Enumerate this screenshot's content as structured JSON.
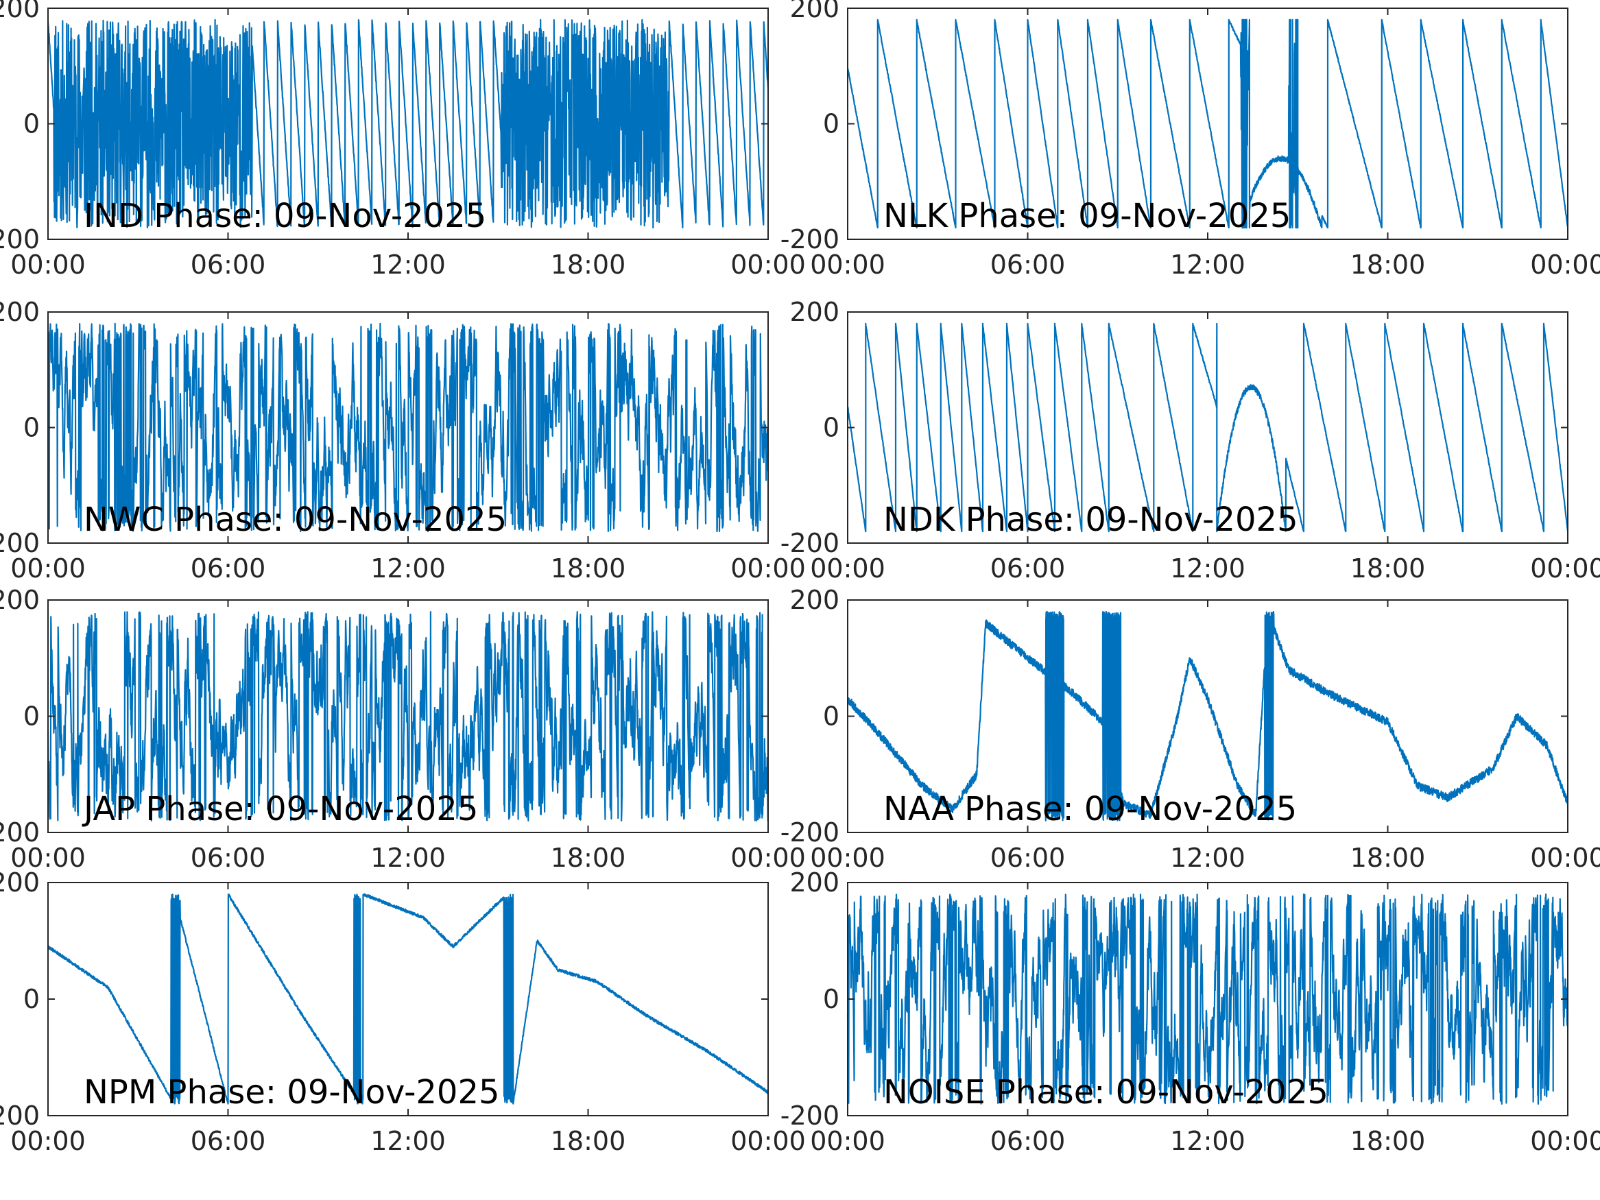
{
  "figure": {
    "line_color": "#0072BD",
    "axis_color": "#262626",
    "background": "#ffffff"
  },
  "chart_data": [
    {
      "type": "line",
      "panel_label": "IND Phase: 09-Nov-2025",
      "xlim": [
        "00:00",
        "24:00"
      ],
      "xticks": [
        "00:00",
        "06:00",
        "12:00",
        "18:00",
        "00:00"
      ],
      "ylim": [
        -200,
        200
      ],
      "yticks": [
        "-200",
        "0",
        "200"
      ],
      "pattern": "dense-wrap",
      "series": [
        {
          "values_description": "phase in degrees wrapping between -180 and 180"
        }
      ],
      "dense_spans": [
        [
          0.2,
          6.8
        ],
        [
          15.1,
          20.7
        ]
      ],
      "ramp_period_hours": 0.45,
      "seed": 11
    },
    {
      "type": "line",
      "panel_label": "NLK Phase: 09-Nov-2025",
      "xlim": [
        "00:00",
        "24:00"
      ],
      "xticks": [
        "00:00",
        "06:00",
        "12:00",
        "18:00",
        "00:00"
      ],
      "ylim": [
        -200,
        200
      ],
      "yticks": [
        "-200",
        "0",
        "200"
      ],
      "pattern": "sawtooth",
      "wrap_times": [
        1.0,
        2.3,
        3.6,
        4.9,
        6.0,
        7.0,
        8.0,
        9.0,
        10.1,
        11.4,
        12.7,
        16.0,
        17.8,
        19.1,
        20.5,
        21.8,
        23.1
      ],
      "anomaly": {
        "start": 13.1,
        "end": 15.8,
        "min": -180,
        "max": -60
      },
      "dense_spans": [
        [
          13.1,
          13.4
        ],
        [
          14.7,
          15.0
        ]
      ],
      "seed": 23
    },
    {
      "type": "line",
      "panel_label": "NWC Phase: 09-Nov-2025",
      "xlim": [
        "00:00",
        "24:00"
      ],
      "xticks": [
        "00:00",
        "06:00",
        "12:00",
        "18:00",
        "00:00"
      ],
      "ylim": [
        -200,
        200
      ],
      "yticks": [
        "-200",
        "0",
        "200"
      ],
      "pattern": "random-wrap",
      "seed": 37
    },
    {
      "type": "line",
      "panel_label": "NDK Phase: 09-Nov-2025",
      "xlim": [
        "00:00",
        "24:00"
      ],
      "xticks": [
        "00:00",
        "06:00",
        "12:00",
        "18:00",
        "00:00"
      ],
      "ylim": [
        -200,
        200
      ],
      "yticks": [
        "-200",
        "0",
        "200"
      ],
      "pattern": "sawtooth",
      "wrap_times": [
        0.6,
        1.6,
        2.3,
        3.1,
        3.8,
        4.5,
        5.3,
        6.0,
        6.9,
        7.8,
        8.7,
        10.2,
        11.5,
        13.5,
        15.2,
        16.6,
        17.9,
        19.2,
        20.5,
        21.8,
        23.2
      ],
      "anomaly": {
        "start": 12.3,
        "end": 14.6,
        "min": -180,
        "max": 70
      },
      "seed": 41
    },
    {
      "type": "line",
      "panel_label": "JAP Phase: 09-Nov-2025",
      "xlim": [
        "00:00",
        "24:00"
      ],
      "xticks": [
        "00:00",
        "06:00",
        "12:00",
        "18:00",
        "00:00"
      ],
      "ylim": [
        -200,
        200
      ],
      "yticks": [
        "-200",
        "0",
        "200"
      ],
      "pattern": "random-wrap",
      "seed": 53
    },
    {
      "type": "line",
      "panel_label": "NAA Phase: 09-Nov-2025",
      "xlim": [
        "00:00",
        "24:00"
      ],
      "xticks": [
        "00:00",
        "06:00",
        "12:00",
        "18:00",
        "00:00"
      ],
      "ylim": [
        -200,
        200
      ],
      "yticks": [
        "-200",
        "0",
        "200"
      ],
      "pattern": "drift",
      "series": [
        {
          "x": [
            0.0,
            1.2,
            2.5,
            3.5,
            4.3,
            4.6,
            6.0,
            7.5,
            8.5,
            9.2,
            10.1,
            11.0,
            11.4,
            12.0,
            13.0,
            13.6,
            14.0,
            14.7,
            16.0,
            18.0,
            19.0,
            20.0,
            21.5,
            22.3,
            23.3,
            24.0
          ],
          "y": [
            30,
            -40,
            -120,
            -160,
            -100,
            160,
            100,
            40,
            -10,
            -150,
            -170,
            0,
            100,
            30,
            -120,
            -170,
            180,
            80,
            40,
            -10,
            -120,
            -140,
            -90,
            0,
            -50,
            -150
          ]
        }
      ],
      "dense_spans": [
        [
          6.6,
          7.2
        ],
        [
          8.5,
          9.1
        ],
        [
          13.9,
          14.2
        ]
      ],
      "noise": 14,
      "seed": 67
    },
    {
      "type": "line",
      "panel_label": "NPM Phase: 09-Nov-2025",
      "xlim": [
        "00:00",
        "24:00"
      ],
      "xticks": [
        "00:00",
        "06:00",
        "12:00",
        "18:00",
        "00:00"
      ],
      "ylim": [
        -200,
        200
      ],
      "yticks": [
        "-200",
        "0",
        "200"
      ],
      "pattern": "drift",
      "series": [
        {
          "x": [
            0.0,
            2.0,
            4.2,
            4.2,
            6.0,
            6.0,
            8.5,
            10.3,
            10.5,
            12.5,
            13.5,
            15.3,
            15.5,
            16.3,
            17.0,
            18.3,
            20.0,
            22.0,
            24.0
          ],
          "y": [
            90,
            20,
            -180,
            180,
            -180,
            180,
            -30,
            -170,
            180,
            140,
            90,
            180,
            -180,
            100,
            50,
            30,
            -30,
            -90,
            -160
          ]
        }
      ],
      "dense_spans": [
        [
          4.1,
          4.4
        ],
        [
          10.2,
          10.5
        ],
        [
          15.2,
          15.5
        ]
      ],
      "noise": 5,
      "seed": 79
    },
    {
      "type": "line",
      "panel_label": "NOISE Phase: 09-Nov-2025",
      "xlim": [
        "00:00",
        "24:00"
      ],
      "xticks": [
        "00:00",
        "06:00",
        "12:00",
        "18:00",
        "00:00"
      ],
      "ylim": [
        -200,
        200
      ],
      "yticks": [
        "-200",
        "0",
        "200"
      ],
      "pattern": "random-wrap",
      "seed": 97
    }
  ]
}
